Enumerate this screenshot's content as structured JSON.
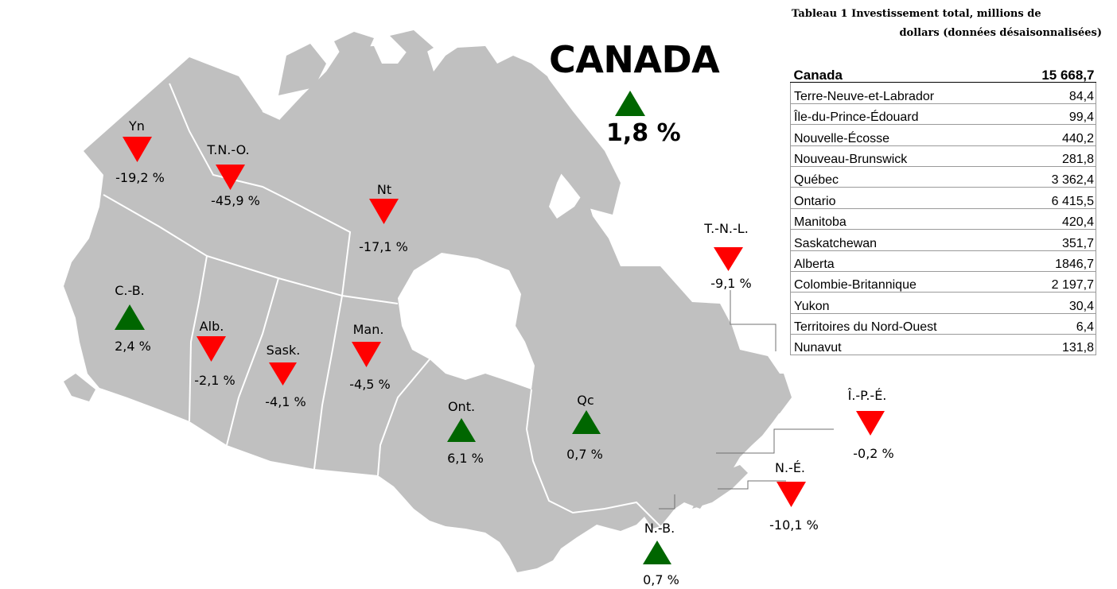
{
  "canada": {
    "title": "CANADA",
    "change": "1,8 %",
    "direction": "up"
  },
  "regions": [
    {
      "id": "yn",
      "label": "Yn",
      "change": "-19,2 %",
      "direction": "down"
    },
    {
      "id": "tno",
      "label": "T.N.-O.",
      "change": "-45,9 %",
      "direction": "down"
    },
    {
      "id": "nt",
      "label": "Nt",
      "change": "-17,1 %",
      "direction": "down"
    },
    {
      "id": "cb",
      "label": "C.-B.",
      "change": "2,4 %",
      "direction": "up"
    },
    {
      "id": "alb",
      "label": "Alb.",
      "change": "-2,1 %",
      "direction": "down"
    },
    {
      "id": "sask",
      "label": "Sask.",
      "change": "-4,1 %",
      "direction": "down"
    },
    {
      "id": "man",
      "label": "Man.",
      "change": "-4,5 %",
      "direction": "down"
    },
    {
      "id": "ont",
      "label": "Ont.",
      "change": "6,1 %",
      "direction": "up"
    },
    {
      "id": "qc",
      "label": "Qc",
      "change": "0,7 %",
      "direction": "up"
    },
    {
      "id": "tnl",
      "label": "T.-N.-L.",
      "change": "-9,1 %",
      "direction": "down"
    },
    {
      "id": "ipe",
      "label": "Î.-P.-É.",
      "change": "-0,2 %",
      "direction": "down"
    },
    {
      "id": "ne",
      "label": "N.-É.",
      "change": "-10,1 %",
      "direction": "down"
    },
    {
      "id": "nb",
      "label": "N.-B.",
      "change": "0,7 %",
      "direction": "up"
    }
  ],
  "table": {
    "title_line1": "Tableau 1 Investissement total, millions de",
    "title_line2": "dollars (données désaisonnalisées)",
    "header": {
      "name": "Canada",
      "value": "15 668,7"
    },
    "rows": [
      {
        "name": "Terre-Neuve-et-Labrador",
        "value": "84,4"
      },
      {
        "name": "Île-du-Prince-Édouard",
        "value": "99,4"
      },
      {
        "name": "Nouvelle-Écosse",
        "value": "440,2"
      },
      {
        "name": "Nouveau-Brunswick",
        "value": "281,8"
      },
      {
        "name": "Québec",
        "value": "3 362,4"
      },
      {
        "name": "Ontario",
        "value": "6 415,5"
      },
      {
        "name": "Manitoba",
        "value": "420,4"
      },
      {
        "name": "Saskatchewan",
        "value": "351,7"
      },
      {
        "name": "Alberta",
        "value": "1846,7"
      },
      {
        "name": "Colombie-Britannique",
        "value": "2 197,7"
      },
      {
        "name": "Yukon",
        "value": "30,4"
      },
      {
        "name": "Territoires du Nord-Ouest",
        "value": "6,4"
      },
      {
        "name": "Nunavut",
        "value": "131,8"
      }
    ]
  },
  "colors": {
    "up": "#006600",
    "down": "#ff0000",
    "land": "#c0c0c0",
    "border": "#ffffff"
  }
}
